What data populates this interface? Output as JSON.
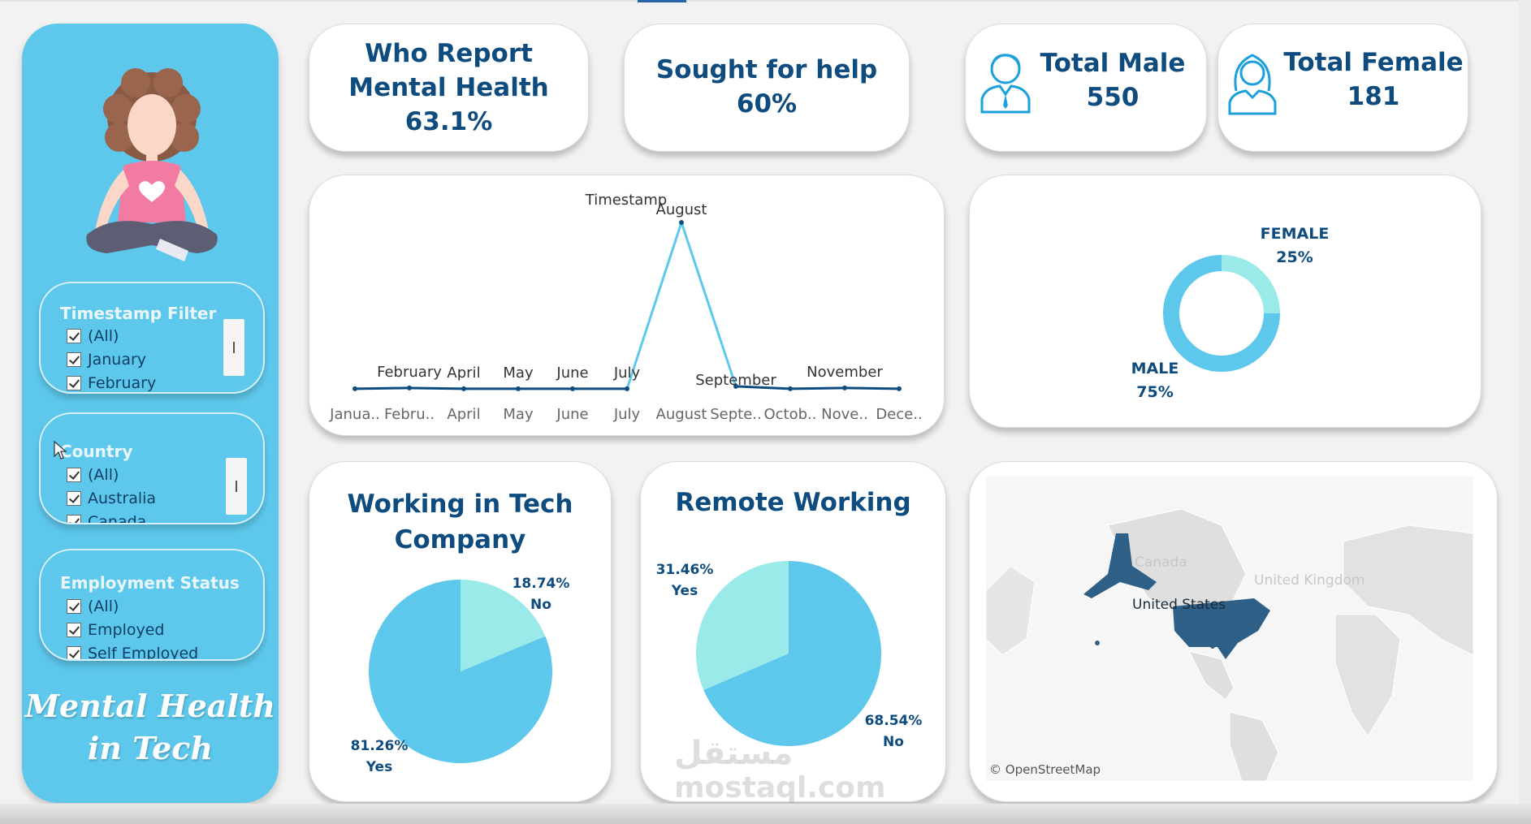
{
  "sidebar": {
    "filters": [
      {
        "title": "Timestamp Filter",
        "options": [
          "(All)",
          "January",
          "February"
        ]
      },
      {
        "title": "Country",
        "options": [
          "(All)",
          "Australia",
          "Canada"
        ]
      },
      {
        "title": "Employment Status",
        "options": [
          "(All)",
          "Employed",
          "Self Employed"
        ]
      }
    ],
    "brand_line1": "Mental Health",
    "brand_line2": "in Tech"
  },
  "kpis": [
    {
      "line1": "Who Report",
      "line2": "Mental Health",
      "value": "63.1%"
    },
    {
      "line1": "Sought for help",
      "value": "60%"
    },
    {
      "label": "Total Male",
      "value": "550",
      "icon": "male-user-icon"
    },
    {
      "label": "Total Female",
      "value": "181",
      "icon": "female-user-icon"
    }
  ],
  "colors": {
    "accent": "#5ec8ec",
    "light": "#9aeaea",
    "dark": "#0e4c7f",
    "map_highlight": "#2e5f86"
  },
  "chart_data": [
    {
      "type": "line",
      "title": "Timestamp",
      "categories": [
        "Janua..",
        "Febru..",
        "April",
        "May",
        "June",
        "July",
        "August",
        "Septe..",
        "Octob..",
        "Nove..",
        "Dece.."
      ],
      "point_labels": [
        "",
        "February",
        "April",
        "May",
        "June",
        "July",
        "August",
        "September",
        "",
        "November",
        ""
      ],
      "values": [
        2,
        3,
        2,
        2,
        2,
        2,
        200,
        5,
        2,
        3,
        2
      ],
      "axes_visible": false
    },
    {
      "type": "pie",
      "subtype": "donut",
      "slices": [
        {
          "label": "FEMALE",
          "percent": "25%",
          "value": 25
        },
        {
          "label": "MALE",
          "percent": "75%",
          "value": 75
        }
      ]
    },
    {
      "type": "pie",
      "title_line1": "Working in Tech",
      "title_line2": "Company",
      "slices": [
        {
          "label": "No",
          "percent": "18.74%",
          "value": 18.74
        },
        {
          "label": "Yes",
          "percent": "81.26%",
          "value": 81.26
        }
      ]
    },
    {
      "type": "pie",
      "title": "Remote Working",
      "slices": [
        {
          "label": "Yes",
          "percent": "31.46%",
          "value": 31.46
        },
        {
          "label": "No",
          "percent": "68.54%",
          "value": 68.54
        }
      ]
    }
  ],
  "map": {
    "labels": [
      "Canada",
      "United Kingdom",
      "United States"
    ],
    "credit": "© OpenStreetMap"
  },
  "watermark": {
    "arabic": "مستقل",
    "site": "mostaql.com"
  }
}
